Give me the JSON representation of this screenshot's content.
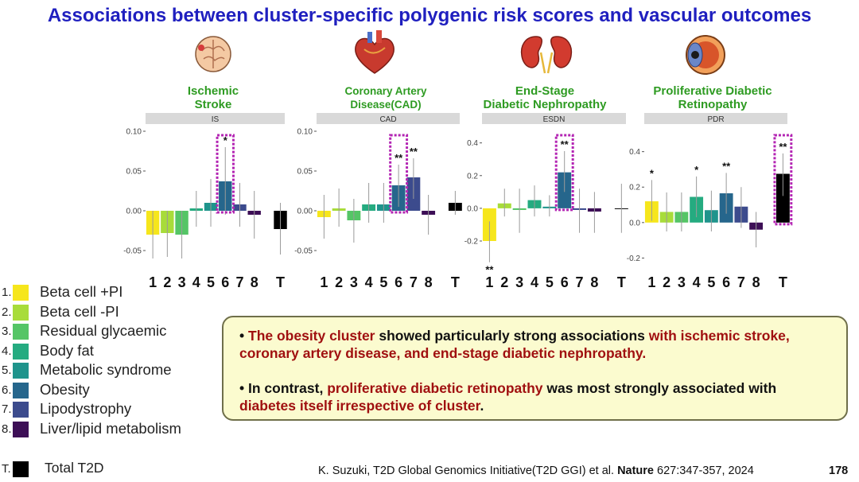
{
  "title": "Associations between cluster-specific polygenic risk scores and vascular outcomes",
  "panels": [
    {
      "title_line1": "Ischemic",
      "title_line2": "Stroke"
    },
    {
      "title_line1": "Coronary Artery",
      "title_line2": "Disease(CAD)"
    },
    {
      "title_line1": "End-Stage",
      "title_line2": "Diabetic Nephropathy"
    },
    {
      "title_line1": "Proliferative Diabetic",
      "title_line2": "Retinopathy"
    }
  ],
  "icons": [
    "brain-icon",
    "heart-icon",
    "kidneys-icon",
    "eye-icon"
  ],
  "chart_data": [
    {
      "type": "bar",
      "facet_label": "IS",
      "categories": [
        "1",
        "2",
        "3",
        "4",
        "5",
        "6",
        "7",
        "8",
        "T"
      ],
      "values": [
        -0.03,
        -0.028,
        -0.03,
        0.003,
        0.01,
        0.037,
        0.008,
        -0.005,
        -0.023
      ],
      "ci_low": [
        -0.06,
        -0.058,
        -0.06,
        -0.02,
        -0.02,
        -0.005,
        -0.02,
        -0.035,
        -0.055
      ],
      "ci_high": [
        0.0,
        0.0,
        0.0,
        0.025,
        0.04,
        0.08,
        0.035,
        0.025,
        0.01
      ],
      "significance": [
        "",
        "",
        "",
        "",
        "",
        "*",
        "",
        "",
        ""
      ],
      "highlight_index": 5,
      "ylim": [
        -0.075,
        0.11
      ],
      "yticks": [
        -0.05,
        0.0,
        0.05,
        0.1
      ],
      "ytick_labels": [
        "-0.05",
        "0.00",
        "0.05",
        "0.10"
      ]
    },
    {
      "type": "bar",
      "facet_label": "CAD",
      "categories": [
        "1",
        "2",
        "3",
        "4",
        "5",
        "6",
        "7",
        "8",
        "T"
      ],
      "values": [
        -0.008,
        0.003,
        -0.012,
        0.008,
        0.008,
        0.032,
        0.042,
        -0.005,
        0.01
      ],
      "ci_low": [
        -0.035,
        -0.02,
        -0.04,
        -0.015,
        -0.015,
        0.005,
        0.015,
        -0.03,
        -0.005
      ],
      "ci_high": [
        0.02,
        0.028,
        0.015,
        0.035,
        0.035,
        0.058,
        0.066,
        0.02,
        0.025
      ],
      "significance": [
        "",
        "",
        "",
        "",
        "",
        "**",
        "**",
        "",
        ""
      ],
      "highlight_index": 5,
      "ylim": [
        -0.075,
        0.11
      ],
      "yticks": [
        -0.05,
        0.0,
        0.05,
        0.1
      ],
      "ytick_labels": [
        "-0.05",
        "0.00",
        "0.05",
        "0.10"
      ]
    },
    {
      "type": "bar",
      "facet_label": "ESDN",
      "categories": [
        "1",
        "2",
        "3",
        "4",
        "5",
        "6",
        "7",
        "8",
        "T"
      ],
      "values": [
        -0.2,
        0.03,
        -0.01,
        0.05,
        0.01,
        0.22,
        -0.01,
        -0.02,
        0.0
      ],
      "ci_low": [
        -0.33,
        -0.05,
        -0.15,
        -0.05,
        -0.05,
        0.1,
        -0.15,
        -0.15,
        -0.15
      ],
      "ci_high": [
        -0.08,
        0.12,
        0.12,
        0.14,
        0.08,
        0.35,
        0.12,
        0.1,
        0.15
      ],
      "significance": [
        "**",
        "",
        "",
        "",
        "",
        "**",
        "",
        "",
        ""
      ],
      "highlight_index": 5,
      "ylim": [
        -0.38,
        0.52
      ],
      "yticks": [
        -0.2,
        0.0,
        0.2,
        0.4
      ],
      "ytick_labels": [
        "-0.2",
        "0.0",
        "0.2",
        "0.4"
      ]
    },
    {
      "type": "bar",
      "facet_label": "PDR",
      "categories": [
        "1",
        "2",
        "3",
        "4",
        "5",
        "6",
        "7",
        "8",
        "T"
      ],
      "values": [
        0.12,
        0.06,
        0.06,
        0.145,
        0.07,
        0.165,
        0.09,
        -0.04,
        0.275
      ],
      "ci_low": [
        0.01,
        -0.05,
        -0.05,
        0.03,
        -0.05,
        0.05,
        -0.03,
        -0.14,
        0.15
      ],
      "ci_high": [
        0.24,
        0.17,
        0.17,
        0.26,
        0.18,
        0.28,
        0.2,
        0.06,
        0.39
      ],
      "significance": [
        "*",
        "",
        "",
        "*",
        "",
        "**",
        "",
        "",
        "**"
      ],
      "highlight_index": 8,
      "ylim": [
        -0.27,
        0.56
      ],
      "yticks": [
        -0.2,
        0.0,
        0.2,
        0.4
      ],
      "ytick_labels": [
        "-0.2",
        "0.0",
        "0.2",
        "0.4"
      ]
    }
  ],
  "colors": [
    "#f6e61c",
    "#a8dc3a",
    "#55c566",
    "#25ab80",
    "#1f948c",
    "#26668c",
    "#3c4b8d",
    "#3d0f56",
    "#000000"
  ],
  "legend": [
    {
      "num": "1.",
      "label": "Beta cell +PI"
    },
    {
      "num": "2.",
      "label": "Beta cell -PI"
    },
    {
      "num": "3.",
      "label": "Residual glycaemic"
    },
    {
      "num": "4.",
      "label": "Body fat"
    },
    {
      "num": "5.",
      "label": "Metabolic syndrome"
    },
    {
      "num": "6.",
      "label": "Obesity"
    },
    {
      "num": "7.",
      "label": "Lipodystrophy"
    },
    {
      "num": "8.",
      "label": "Liver/lipid metabolism"
    }
  ],
  "legend_total": {
    "num": "T.",
    "label": "Total T2D"
  },
  "callout": {
    "b1_bullet": "• ",
    "b1_p1": "The obesity cluster",
    "b1_p2": " showed particularly strong associations ",
    "b1_p3": "with ischemic stroke, coronary artery disease, and end-stage diabetic nephropathy.",
    "b2_bullet": "• ",
    "b2_p1": "In contrast, ",
    "b2_p2": "proliferative diabetic retinopathy",
    "b2_p3": " was most strongly associated with ",
    "b2_p4": "diabetes itself irrespective of cluster",
    "b2_p5": "."
  },
  "citation": {
    "prefix": "K. Suzuki, T2D Global Genomics Initiative(T2D GGI)  et al. ",
    "journal": "Nature",
    "ref": " 627:347-357, 2024"
  },
  "page_number": "178"
}
